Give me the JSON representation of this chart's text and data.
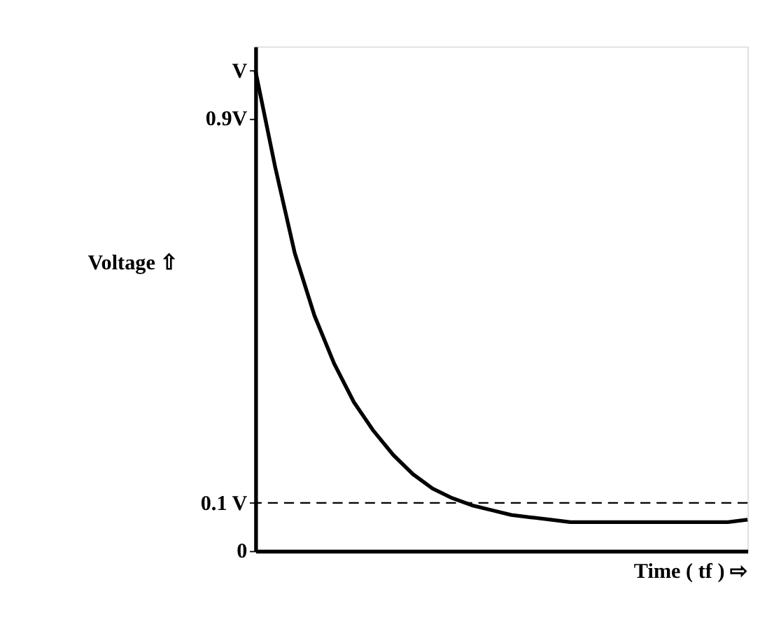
{
  "chart_data": {
    "type": "line",
    "xlabel": "Time ( tf ) ⇨",
    "ylabel": "Voltage ⇧",
    "categories": [
      null,
      null,
      null,
      null,
      null,
      null,
      null,
      null,
      null,
      null,
      null,
      null,
      null,
      null,
      null,
      null,
      null,
      null,
      null,
      null,
      null,
      null,
      null,
      null,
      null,
      null
    ],
    "series": [
      {
        "color": "#000000",
        "values": [
          1.0,
          0.8,
          0.62,
          0.49,
          0.39,
          0.31,
          0.25,
          0.2,
          0.16,
          0.13,
          0.11,
          0.095,
          0.085,
          0.075,
          0.07,
          0.065,
          0.06,
          0.06,
          0.06,
          0.06,
          0.06,
          0.06,
          0.06,
          0.06,
          0.06,
          0.065
        ]
      }
    ],
    "ylim": [
      0,
      1.05
    ],
    "yticks": [
      0,
      {
        "value": 0.1,
        "label": "0.1 V"
      },
      {
        "value": 0.9,
        "label": "0.9V"
      },
      {
        "value": 1,
        "label": "V"
      }
    ],
    "ref_lines": [
      {
        "axis": "y",
        "value": 0.1,
        "label": null,
        "color": "#000000",
        "line_style": "dashed"
      }
    ],
    "tick_labels": "y",
    "grid": false,
    "marker": "none",
    "line_style": "solid"
  }
}
